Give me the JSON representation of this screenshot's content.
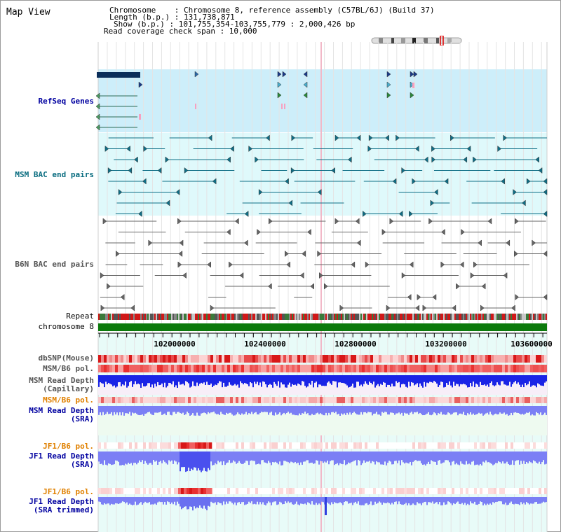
{
  "map_title": "Map View",
  "info": {
    "chromosome": "Chromosome    : Chromosome 8, reference assembly (C57BL/6J) (Build 37)",
    "length": "Length (b.p.) : 131,738,871",
    "show": "Show (b.p.) : 101,755,354-103,755,779 : 2,000,426 bp",
    "coverage": "Read coverage check span : 10,000"
  },
  "tracks": {
    "refseq": "RefSeq Genes",
    "msm_bac": "MSM BAC end pairs",
    "b6n_bac": "B6N BAC end pairs",
    "repeat": "Repeat",
    "chromosome": "chromosome 8",
    "dbsnp": "dbSNP(Mouse)",
    "msm_pol1": "MSM/B6 pol.",
    "msm_depth_cap_1": "MSM Read Depth",
    "msm_depth_cap_2": "(Capillary)",
    "msm_pol2": "MSM/B6 pol.",
    "msm_depth_sra_1": "MSM Read Depth",
    "msm_depth_sra_2": "(SRA)",
    "jf1_pol1": "JF1/B6 pol.",
    "jf1_depth_sra_1": "JF1 Read Depth",
    "jf1_depth_sra_2": "(SRA)",
    "jf1_pol2": "JF1/B6 pol.",
    "jf1_depth_trim_1": "JF1 Read Depth",
    "jf1_depth_trim_2": "(SRA trimmed)"
  },
  "axis_ticks": [
    "102000000",
    "102400000",
    "102800000",
    "103200000",
    "103600000"
  ],
  "colors": {
    "refseq_bg": "#cdeefa",
    "msm_bg": "#dff9fb",
    "b6n_bg": "#ffffff",
    "lower_bg": "#e8fbf8",
    "chromosome": "#0c7a0c",
    "depth_blue": "#1a24e6",
    "depth_light": "#7b7ff5"
  }
}
